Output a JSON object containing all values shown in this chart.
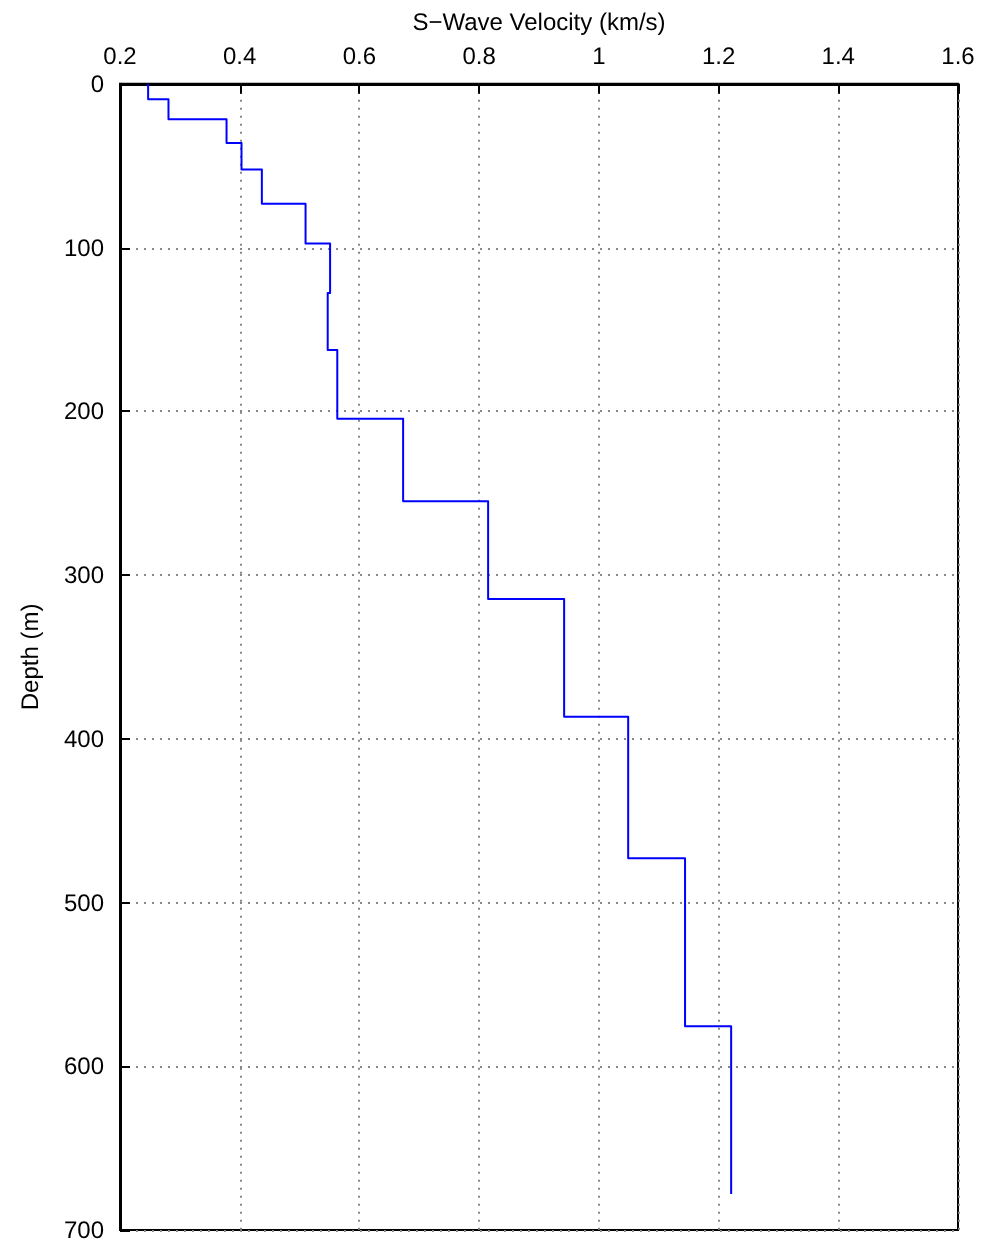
{
  "chart_data": {
    "type": "line",
    "xlabel": "S−Wave Velocity (km/s)",
    "ylabel": "Depth (m)",
    "xlim": [
      0.2,
      1.6
    ],
    "xticks": [
      0.2,
      0.4,
      0.6,
      0.8,
      1,
      1.2,
      1.4,
      1.6
    ],
    "ylim": [
      700,
      0
    ],
    "yticks": [
      0,
      100,
      200,
      300,
      400,
      500,
      600,
      700
    ],
    "grid": true,
    "marker": "none",
    "line_style": "solid",
    "series": [
      {
        "color": "#0000ff",
        "x": [
          0.247,
          0.247,
          0.281,
          0.281,
          0.378,
          0.378,
          0.403,
          0.403,
          0.437,
          0.437,
          0.51,
          0.51,
          0.551,
          0.551,
          0.547,
          0.547,
          0.563,
          0.563,
          0.673,
          0.673,
          0.815,
          0.815,
          0.942,
          0.942,
          1.049,
          1.049,
          1.144,
          1.144,
          1.221,
          1.221
        ],
        "values": [
          0,
          9.4,
          9.4,
          21.6,
          21.6,
          36.2,
          36.2,
          52.4,
          52.4,
          73.2,
          73.2,
          97.6,
          97.6,
          127.7,
          127.7,
          162.6,
          162.6,
          204.5,
          204.5,
          255,
          255,
          314.6,
          314.6,
          386.6,
          386.6,
          473,
          473,
          575.6,
          575.6,
          678
        ]
      }
    ]
  }
}
